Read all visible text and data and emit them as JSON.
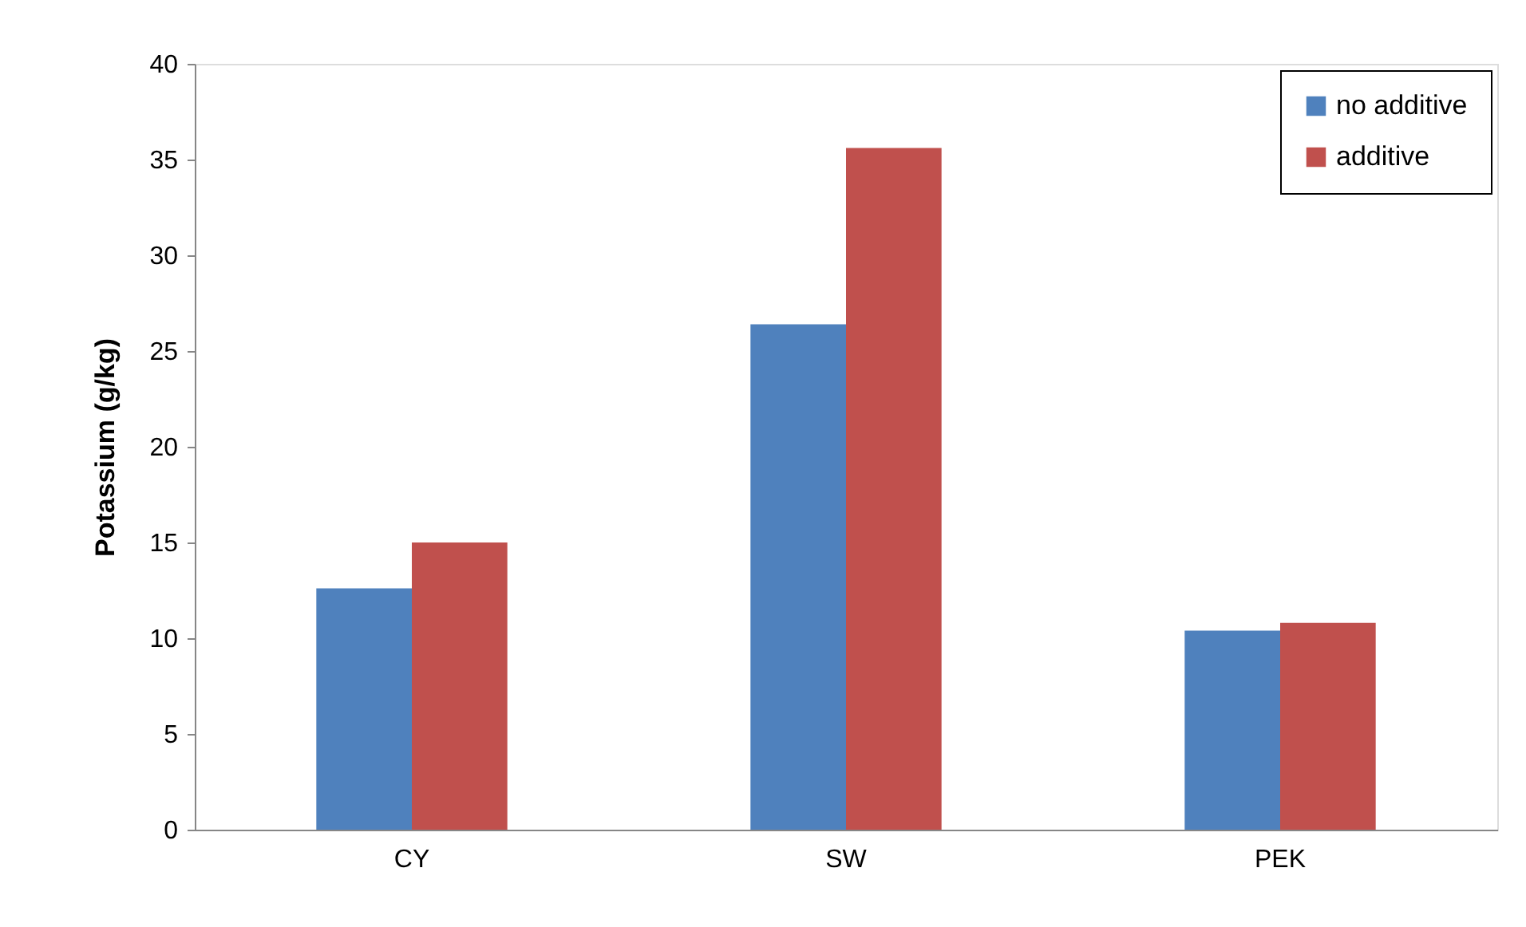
{
  "chart_data": {
    "type": "bar",
    "ylabel": "Potassium (g/kg)",
    "categories": [
      "CY",
      "SW",
      "PEK"
    ],
    "series": [
      {
        "name": "no additive",
        "color": "#4f81bd",
        "values": [
          12.6,
          26.4,
          10.4
        ]
      },
      {
        "name": "additive",
        "color": "#c0504d",
        "values": [
          15.0,
          35.6,
          10.8
        ]
      }
    ],
    "ylim": [
      0,
      40
    ],
    "yticks": [
      0,
      5,
      10,
      15,
      20,
      25,
      30,
      35,
      40
    ],
    "grid": false,
    "legend": "top right"
  }
}
